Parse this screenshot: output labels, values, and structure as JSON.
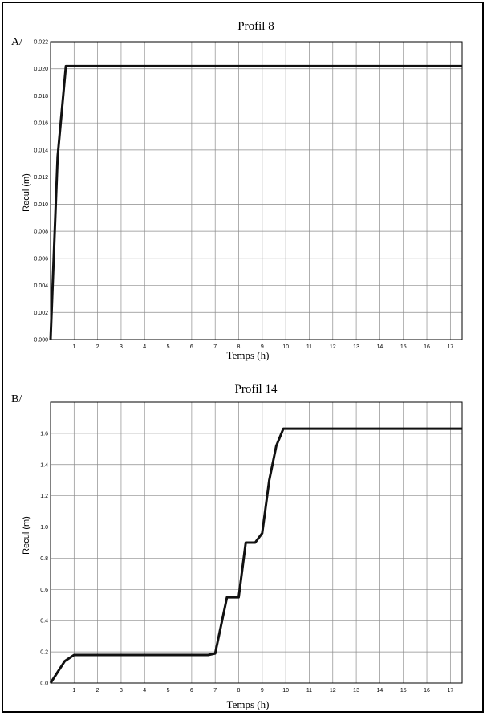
{
  "chart_data": [
    {
      "type": "line",
      "panel_label": "A/",
      "title": "Profil 8",
      "xlabel": "Temps (h)",
      "ylabel": "Recul (m)",
      "xlim": [
        0,
        17.5
      ],
      "ylim": [
        0,
        0.022
      ],
      "x_ticks": [
        1,
        2,
        3,
        4,
        5,
        6,
        7,
        8,
        9,
        10,
        11,
        12,
        13,
        14,
        15,
        16,
        17
      ],
      "y_ticks": [
        "0.000",
        "0.002",
        "0.004",
        "0.006",
        "0.008",
        "0.010",
        "0.012",
        "0.014",
        "0.016",
        "0.018",
        "0.020",
        "0.022"
      ],
      "grid": true,
      "series": [
        {
          "x": [
            0,
            0.3,
            0.65,
            17.5
          ],
          "y": [
            0,
            0.0135,
            0.0202,
            0.0202
          ]
        }
      ]
    },
    {
      "type": "line",
      "panel_label": "B/",
      "title": "Profil 14",
      "xlabel": "Temps (h)",
      "ylabel": "Recul (m)",
      "xlim": [
        0,
        17.5
      ],
      "ylim": [
        0,
        1.8
      ],
      "x_ticks": [
        1,
        2,
        3,
        4,
        5,
        6,
        7,
        8,
        9,
        10,
        11,
        12,
        13,
        14,
        15,
        16,
        17
      ],
      "y_ticks": [
        "0.0",
        "0.2",
        "0.4",
        "0.6",
        "0.8",
        "1.0",
        "1.2",
        "1.4",
        "1.6"
      ],
      "grid": true,
      "series": [
        {
          "x": [
            0,
            0.6,
            1.0,
            6.7,
            7.0,
            7.5,
            8.0,
            8.3,
            8.7,
            9.0,
            9.3,
            9.6,
            9.9,
            17.5
          ],
          "y": [
            0,
            0.14,
            0.18,
            0.18,
            0.19,
            0.55,
            0.55,
            0.9,
            0.9,
            0.96,
            1.3,
            1.52,
            1.63,
            1.63
          ]
        }
      ]
    }
  ]
}
